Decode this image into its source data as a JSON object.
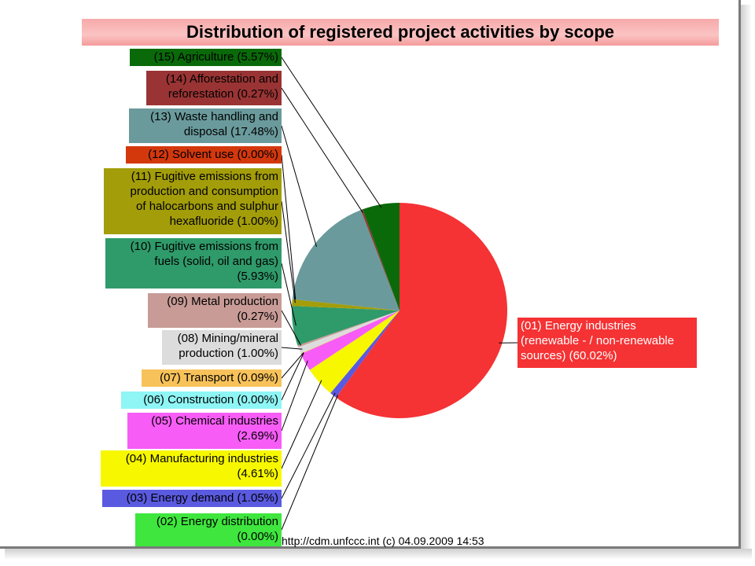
{
  "chart_data": {
    "type": "pie",
    "title": "Distribution of registered project activities by scope",
    "slices": [
      {
        "label": "(01) Energy industries (renewable - / non-renewable sources) (60.02%)",
        "lines": [
          "(01) Energy industries",
          "(renewable - / non-renewable",
          "sources) (60.02%)"
        ],
        "value": 60.02,
        "color": "#f53234"
      },
      {
        "label": "(02) Energy distribution (0.00%)",
        "lines": [
          "(02) Energy distribution",
          "(0.00%)"
        ],
        "value": 0.0,
        "color": "#3ee63e"
      },
      {
        "label": "(03) Energy demand (1.05%)",
        "lines": [
          "(03) Energy demand (1.05%)"
        ],
        "value": 1.05,
        "color": "#5a5ae0"
      },
      {
        "label": "(04) Manufacturing industries (4.61%)",
        "lines": [
          "(04) Manufacturing industries",
          "(4.61%)"
        ],
        "value": 4.61,
        "color": "#f7f700"
      },
      {
        "label": "(05) Chemical industries (2.69%)",
        "lines": [
          "(05) Chemical industries",
          "(2.69%)"
        ],
        "value": 2.69,
        "color": "#f75cf7"
      },
      {
        "label": "(06) Construction (0.00%)",
        "lines": [
          "(06) Construction (0.00%)"
        ],
        "value": 0.0,
        "color": "#8ff5f5"
      },
      {
        "label": "(07) Transport (0.09%)",
        "lines": [
          "(07) Transport (0.09%)"
        ],
        "value": 0.09,
        "color": "#f7c25a"
      },
      {
        "label": "(08) Mining/mineral production (1.00%)",
        "lines": [
          "(08) Mining/mineral",
          "production (1.00%)"
        ],
        "value": 1.0,
        "color": "#dcdcdc"
      },
      {
        "label": "(09) Metal production (0.27%)",
        "lines": [
          "(09) Metal production",
          "(0.27%)"
        ],
        "value": 0.27,
        "color": "#c89b96"
      },
      {
        "label": "(10) Fugitive emissions from fuels (solid, oil and gas) (5.93%)",
        "lines": [
          "(10) Fugitive emissions from",
          "fuels (solid, oil and gas)",
          "(5.93%)"
        ],
        "value": 5.93,
        "color": "#2f9a6a"
      },
      {
        "label": "(11) Fugitive emissions from production and consumption of halocarbons and sulphur hexafluoride (1.00%)",
        "lines": [
          "(11) Fugitive emissions from",
          "production and consumption",
          "of halocarbons and sulphur",
          "hexafluoride (1.00%)"
        ],
        "value": 1.0,
        "color": "#a39d0a"
      },
      {
        "label": "(12) Solvent use (0.00%)",
        "lines": [
          "(12) Solvent use (0.00%)"
        ],
        "value": 0.0,
        "color": "#d3380d"
      },
      {
        "label": "(13) Waste handling and disposal (17.48%)",
        "lines": [
          "(13) Waste handling and",
          "disposal (17.48%)"
        ],
        "value": 17.48,
        "color": "#6a9a9c"
      },
      {
        "label": "(14) Afforestation and reforestation (0.27%)",
        "lines": [
          "(14) Afforestation and",
          "reforestation (0.27%)"
        ],
        "value": 0.27,
        "color": "#9a3434"
      },
      {
        "label": "(15) Agriculture (5.57%)",
        "lines": [
          "(15) Agriculture (5.57%)"
        ],
        "value": 5.57,
        "color": "#0a6a0a"
      }
    ],
    "legend": "callout-labels"
  },
  "footer": "http://cdm.unfccc.int (c) 04.09.2009 14:53"
}
